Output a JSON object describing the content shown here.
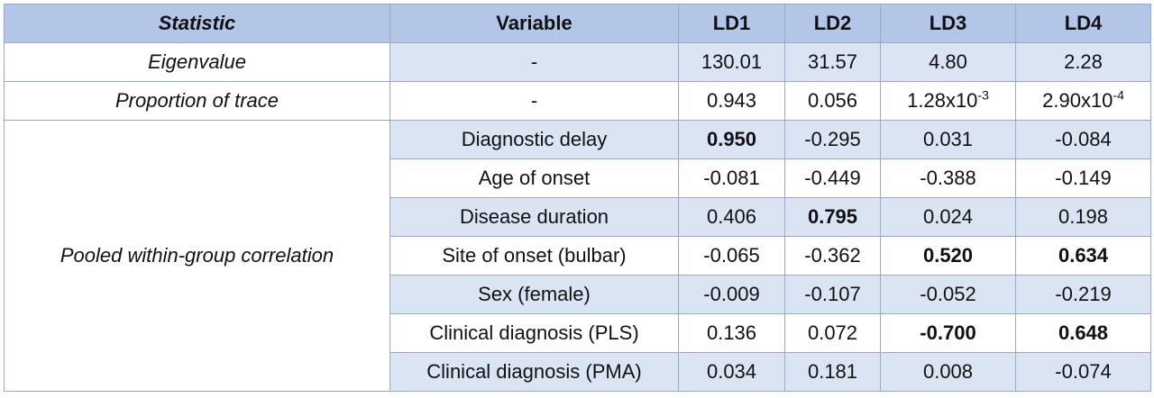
{
  "headers": [
    "Statistic",
    "Variable",
    "LD1",
    "LD2",
    "LD3",
    "LD4"
  ],
  "eigen": {
    "statistic": "Eigenvalue",
    "variable": "-",
    "values": [
      "130.01",
      "31.57",
      "4.80",
      "2.28"
    ]
  },
  "trace": {
    "statistic": "Proportion of trace",
    "variable": "-",
    "ld1": "0.943",
    "ld2": "0.056",
    "ld3_base": "1.28x10",
    "ld3_exp": "-3",
    "ld4_base": "2.90x10",
    "ld4_exp": "-4"
  },
  "pooled": {
    "statistic": "Pooled within-group correlation",
    "rows": [
      {
        "variable": "Diagnostic delay",
        "values": [
          "0.950",
          "-0.295",
          "0.031",
          "-0.084"
        ],
        "bold": [
          true,
          false,
          false,
          false
        ]
      },
      {
        "variable": "Age of onset",
        "values": [
          "-0.081",
          "-0.449",
          "-0.388",
          "-0.149"
        ],
        "bold": [
          false,
          false,
          false,
          false
        ]
      },
      {
        "variable": "Disease duration",
        "values": [
          "0.406",
          "0.795",
          "0.024",
          "0.198"
        ],
        "bold": [
          false,
          true,
          false,
          false
        ]
      },
      {
        "variable": "Site of onset (bulbar)",
        "values": [
          "-0.065",
          "-0.362",
          "0.520",
          "0.634"
        ],
        "bold": [
          false,
          false,
          true,
          true
        ]
      },
      {
        "variable": "Sex (female)",
        "values": [
          "-0.009",
          "-0.107",
          "-0.052",
          "-0.219"
        ],
        "bold": [
          false,
          false,
          false,
          false
        ]
      },
      {
        "variable": "Clinical diagnosis (PLS)",
        "values": [
          "0.136",
          "0.072",
          "-0.700",
          "0.648"
        ],
        "bold": [
          false,
          false,
          true,
          true
        ]
      },
      {
        "variable": "Clinical diagnosis (PMA)",
        "values": [
          "0.034",
          "0.181",
          "0.008",
          "-0.074"
        ],
        "bold": [
          false,
          false,
          false,
          false
        ]
      }
    ]
  }
}
